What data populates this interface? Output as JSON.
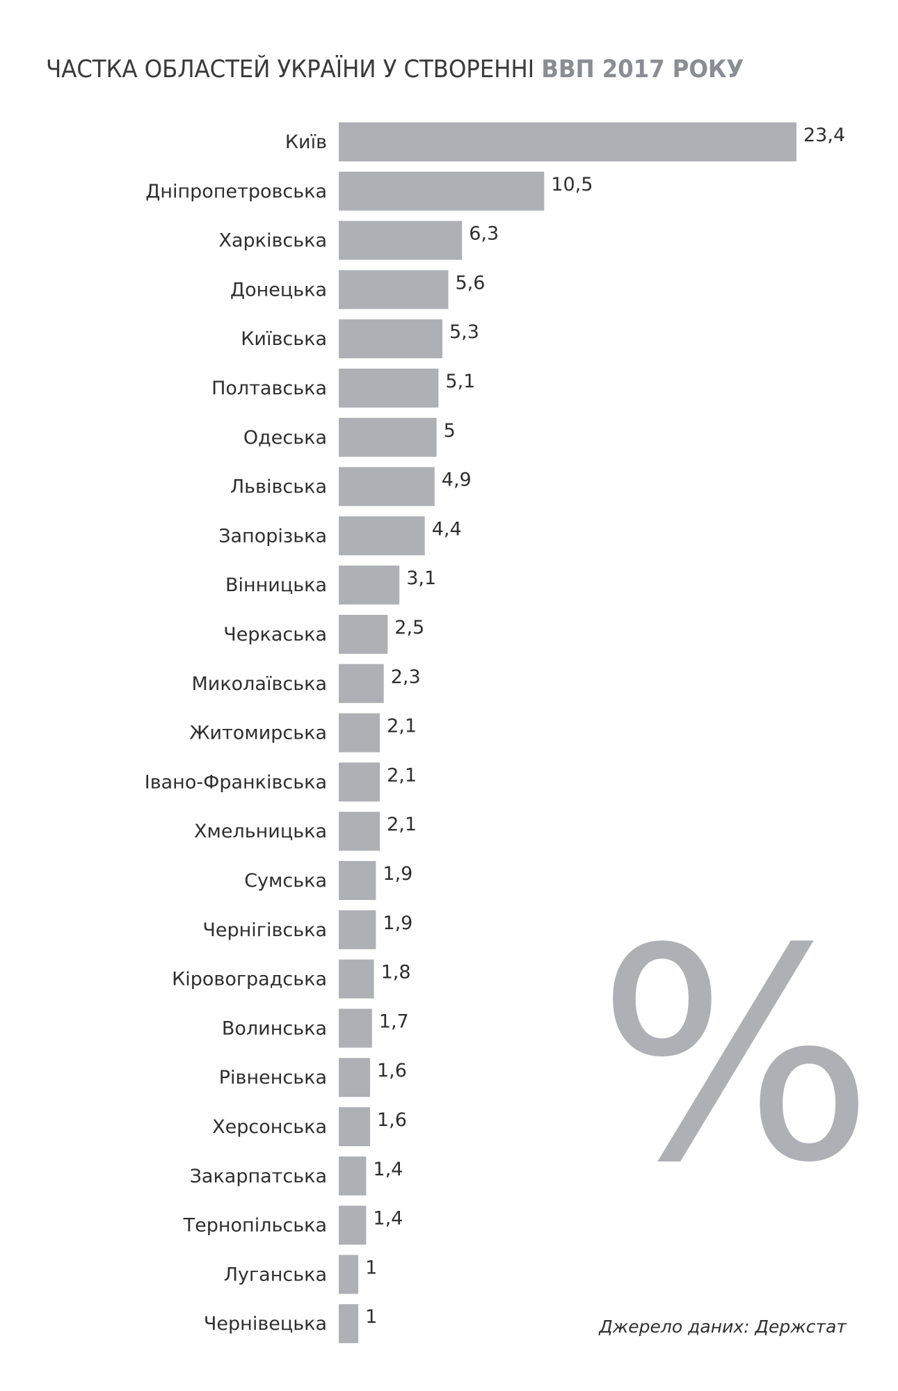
{
  "title": {
    "prefix": "ЧАСТКА ОБЛАСТЕЙ УКРАЇНИ У СТВОРЕННІ ",
    "highlight": "ВВП 2017 РОКУ"
  },
  "decoration": {
    "percent_symbol": "%"
  },
  "source": "Джерело даних: Держстат",
  "colors": {
    "bar": "#aeb0b6",
    "text": "#2e2e2e",
    "title_highlight": "#8a8d94"
  },
  "chart_data": {
    "type": "bar",
    "orientation": "horizontal",
    "title": "ЧАСТКА ОБЛАСТЕЙ УКРАЇНИ У СТВОРЕННІ ВВП 2017 РОКУ",
    "unit": "%",
    "categories": [
      "Київ",
      "Дніпропетровська",
      "Харківська",
      "Донецька",
      "Київська",
      "Полтавська",
      "Одеська",
      "Львівська",
      "Запорізька",
      "Вінницька",
      "Черкаська",
      "Миколаївська",
      "Житомирська",
      "Івано-Франківська",
      "Хмельницька",
      "Сумська",
      "Чернігівська",
      "Кіровоградська",
      "Волинська",
      "Рівненська",
      "Херсонська",
      "Закарпатська",
      "Тернопільська",
      "Луганська",
      "Чернівецька"
    ],
    "values": [
      23.4,
      10.5,
      6.3,
      5.6,
      5.3,
      5.1,
      5,
      4.9,
      4.4,
      3.1,
      2.5,
      2.3,
      2.1,
      2.1,
      2.1,
      1.9,
      1.9,
      1.8,
      1.7,
      1.6,
      1.6,
      1.4,
      1.4,
      1,
      1
    ],
    "value_labels": [
      "23,4",
      "10,5",
      "6,3",
      "5,6",
      "5,3",
      "5,1",
      "5",
      "4,9",
      "4,4",
      "3,1",
      "2,5",
      "2,3",
      "2,1",
      "2,1",
      "2,1",
      "1,9",
      "1,9",
      "1,8",
      "1,7",
      "1,6",
      "1,6",
      "1,4",
      "1,4",
      "1",
      "1"
    ],
    "xlim": [
      0,
      23.4
    ],
    "grid": false,
    "legend": "none"
  }
}
